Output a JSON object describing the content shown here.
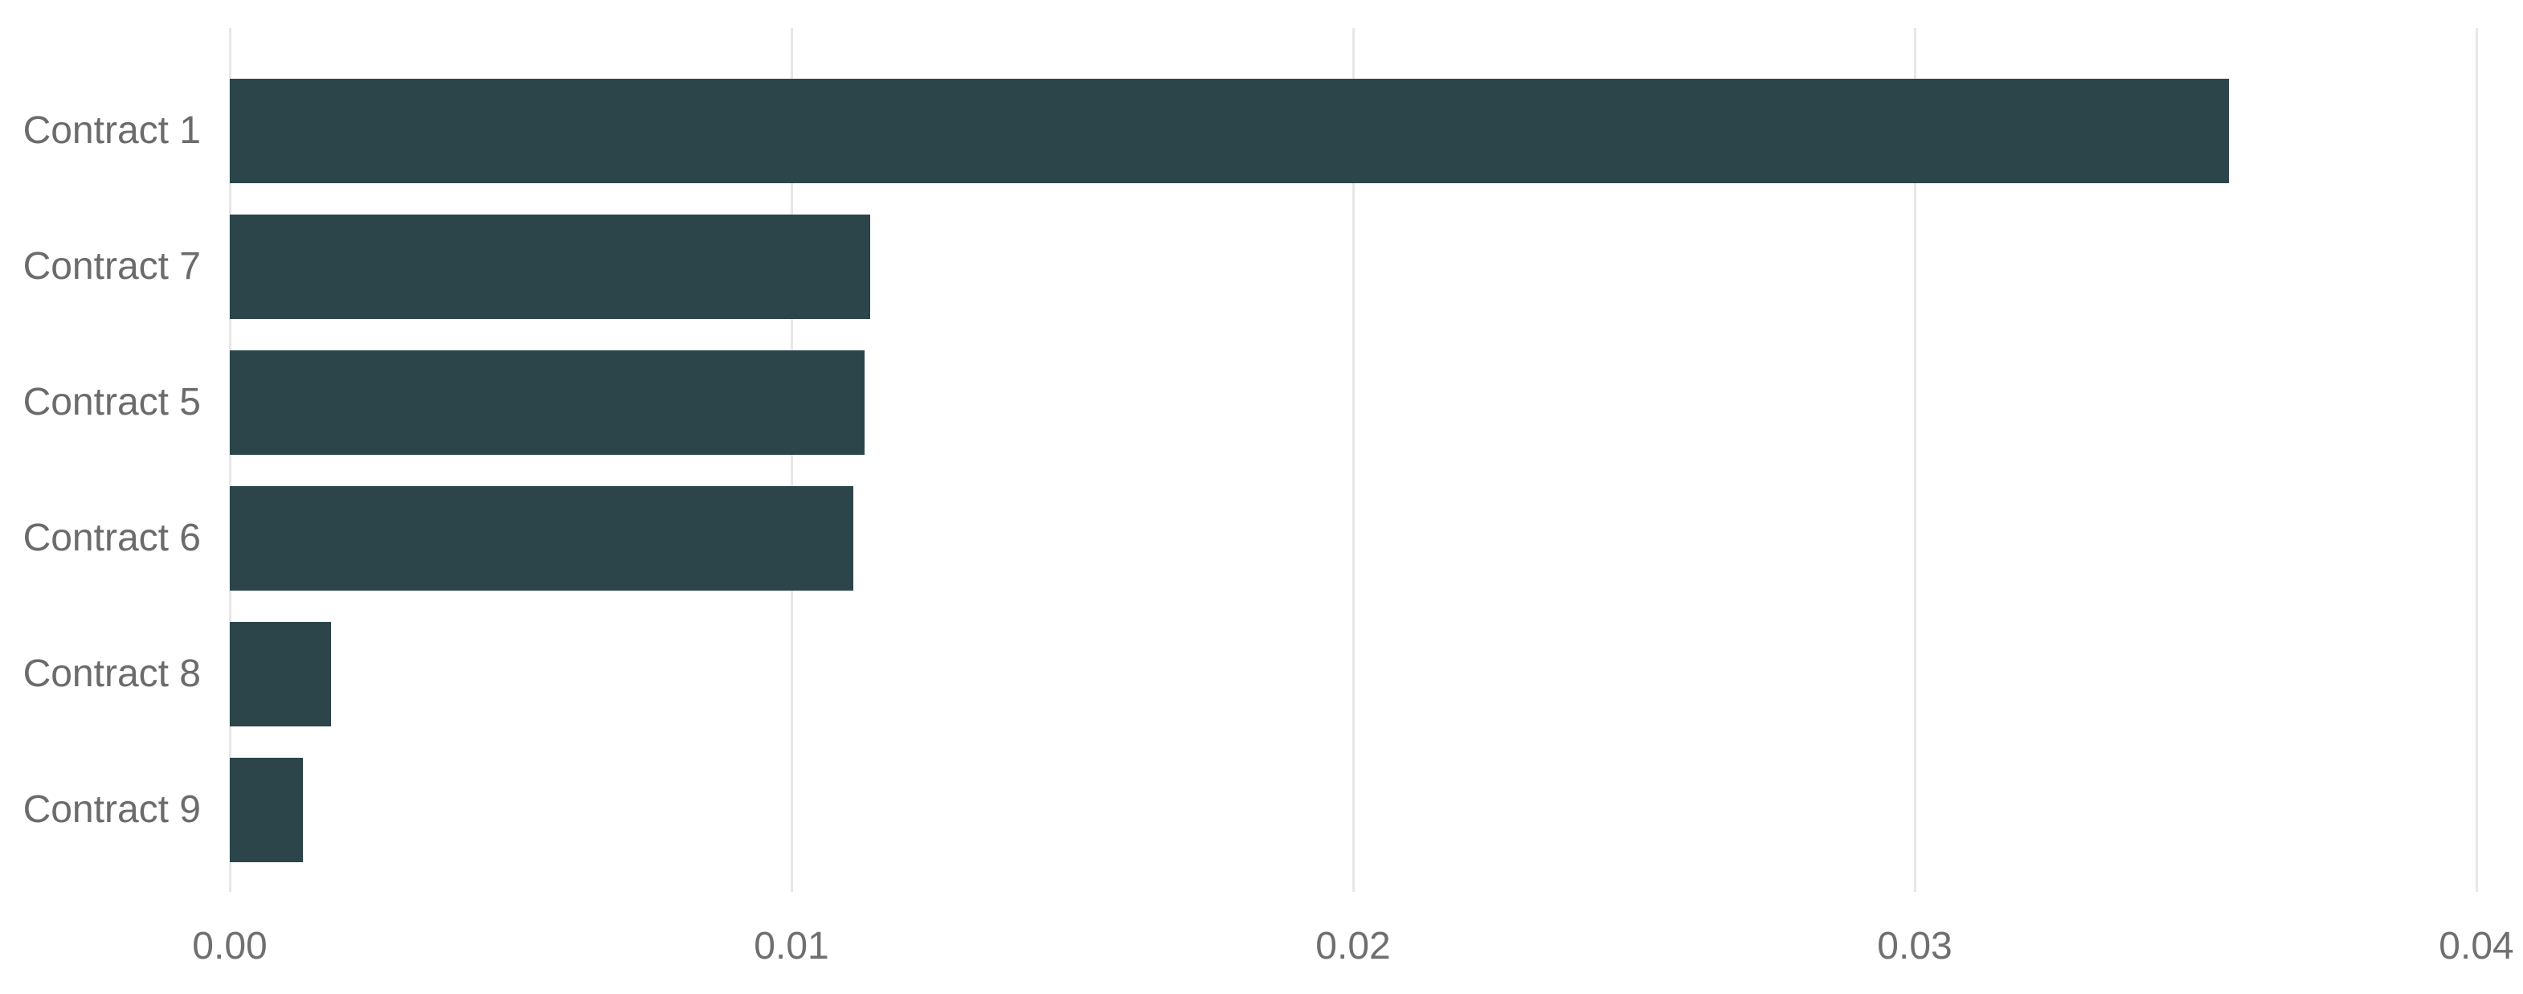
{
  "chart_data": {
    "type": "bar",
    "orientation": "horizontal",
    "title": "",
    "xlabel": "",
    "ylabel": "",
    "categories": [
      "Contract 1",
      "Contract 7",
      "Contract 5",
      "Contract 6",
      "Contract 8",
      "Contract 9"
    ],
    "values": [
      0.0356,
      0.0114,
      0.0113,
      0.0111,
      0.0018,
      0.0013
    ],
    "xlim": [
      0,
      0.04
    ],
    "x_ticks": [
      {
        "value": 0.0,
        "label": "0.00"
      },
      {
        "value": 0.01,
        "label": "0.01"
      },
      {
        "value": 0.02,
        "label": "0.02"
      },
      {
        "value": 0.03,
        "label": "0.03"
      },
      {
        "value": 0.04,
        "label": "0.04"
      }
    ],
    "grid": "vertical-only",
    "legend": "none",
    "sort_order": "descending-by-value"
  },
  "style": {
    "bar_color": "#2b454b",
    "gridline_color": "#e7e7e7",
    "category_label_color": "#6b6b6b",
    "tick_label_color": "#6f6f6f",
    "background_color": "#ffffff"
  }
}
